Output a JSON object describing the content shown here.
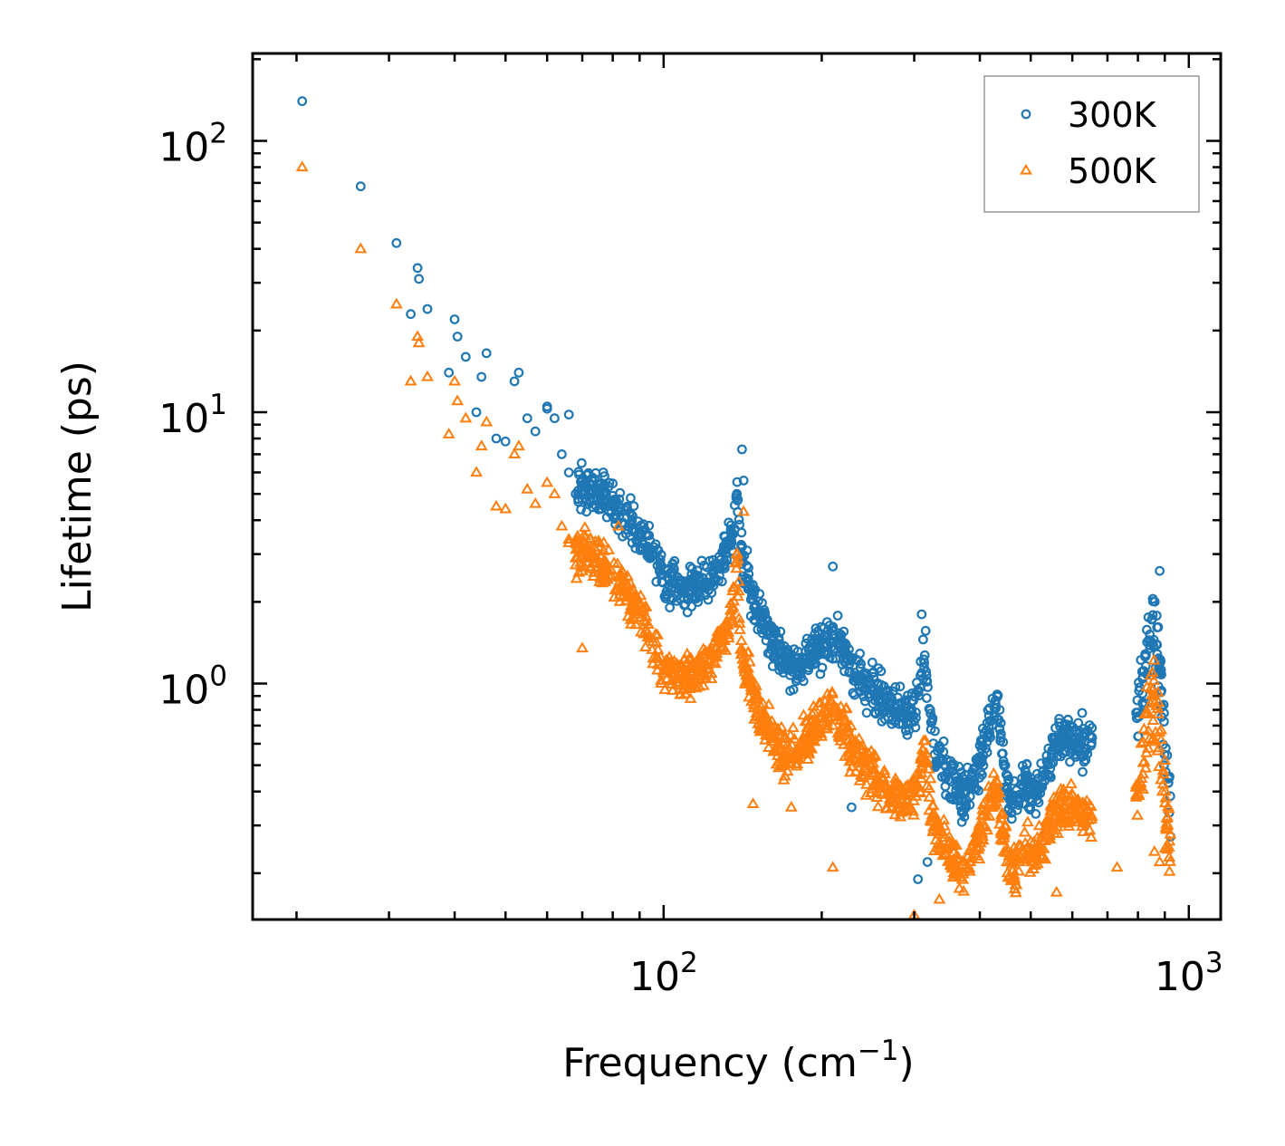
{
  "chart_data": {
    "type": "scatter",
    "title": "",
    "xlabel": "Frequency (cm",
    "xlabel_sup": "−1",
    "xlabel_close": ")",
    "ylabel": "Lifetime (ps)",
    "xscale": "log",
    "yscale": "log",
    "xlim": [
      16.5,
      1150
    ],
    "ylim": [
      0.135,
      210
    ],
    "x_ticks": [
      {
        "value": 100,
        "base": "10",
        "exp": "2"
      },
      {
        "value": 1000,
        "base": "10",
        "exp": "3"
      }
    ],
    "y_ticks": [
      {
        "value": 1,
        "base": "10",
        "exp": "0"
      },
      {
        "value": 10,
        "base": "10",
        "exp": "1"
      },
      {
        "value": 100,
        "base": "10",
        "exp": "2"
      }
    ],
    "legend_position": "top-right",
    "series": [
      {
        "name": "300K",
        "marker": "circle",
        "color": "#1f77b4",
        "anchors": [
          [
            20.5,
            140
          ],
          [
            26.5,
            68
          ],
          [
            31,
            42
          ],
          [
            33,
            23
          ],
          [
            34,
            34
          ],
          [
            34.2,
            31
          ],
          [
            35.5,
            24
          ],
          [
            39,
            14
          ],
          [
            40,
            22
          ],
          [
            40.5,
            19
          ],
          [
            42,
            16
          ],
          [
            44,
            10
          ],
          [
            45,
            13.5
          ],
          [
            46,
            16.5
          ],
          [
            48,
            8
          ],
          [
            50,
            7.8
          ],
          [
            52,
            13
          ],
          [
            53,
            14
          ],
          [
            55,
            9.5
          ],
          [
            57,
            8.5
          ],
          [
            60,
            10.5
          ],
          [
            62,
            9.5
          ],
          [
            64,
            7
          ],
          [
            66,
            6
          ],
          [
            68,
            5
          ],
          [
            70,
            5.6
          ],
          [
            72,
            5.2
          ],
          [
            75,
            5
          ],
          [
            78,
            4.8
          ],
          [
            82,
            4.4
          ],
          [
            85,
            4
          ],
          [
            88,
            3.9
          ],
          [
            92,
            3.4
          ],
          [
            95,
            3
          ],
          [
            98,
            2.7
          ],
          [
            100,
            2.4
          ],
          [
            105,
            2.3
          ],
          [
            110,
            2.2
          ],
          [
            115,
            2.3
          ],
          [
            120,
            2.3
          ],
          [
            125,
            2.6
          ],
          [
            130,
            3
          ],
          [
            135,
            3.4
          ],
          [
            138,
            5.5
          ],
          [
            140,
            3
          ],
          [
            145,
            2.3
          ],
          [
            150,
            1.9
          ],
          [
            155,
            1.7
          ],
          [
            160,
            1.5
          ],
          [
            165,
            1.3
          ],
          [
            170,
            1.2
          ],
          [
            180,
            1.15
          ],
          [
            190,
            1.3
          ],
          [
            200,
            1.4
          ],
          [
            210,
            1.5
          ],
          [
            220,
            1.4
          ],
          [
            230,
            1.1
          ],
          [
            240,
            1.0
          ],
          [
            250,
            0.95
          ],
          [
            260,
            0.9
          ],
          [
            270,
            0.85
          ],
          [
            280,
            0.8
          ],
          [
            290,
            0.75
          ],
          [
            300,
            0.8
          ],
          [
            310,
            1.1
          ],
          [
            315,
            1.3
          ],
          [
            320,
            0.8
          ],
          [
            330,
            0.55
          ],
          [
            340,
            0.5
          ],
          [
            350,
            0.45
          ],
          [
            360,
            0.42
          ],
          [
            370,
            0.38
          ],
          [
            380,
            0.4
          ],
          [
            390,
            0.45
          ],
          [
            400,
            0.5
          ],
          [
            410,
            0.6
          ],
          [
            420,
            0.75
          ],
          [
            430,
            0.9
          ],
          [
            440,
            0.6
          ],
          [
            450,
            0.4
          ],
          [
            460,
            0.38
          ],
          [
            470,
            0.35
          ],
          [
            480,
            0.42
          ],
          [
            490,
            0.45
          ],
          [
            500,
            0.4
          ],
          [
            520,
            0.42
          ],
          [
            540,
            0.5
          ],
          [
            560,
            0.6
          ],
          [
            580,
            0.65
          ],
          [
            600,
            0.62
          ],
          [
            620,
            0.6
          ],
          [
            640,
            0.6
          ],
          [
            800,
            0.8
          ],
          [
            820,
            1
          ],
          [
            840,
            1.4
          ],
          [
            860,
            1.7
          ],
          [
            880,
            1.2
          ],
          [
            900,
            0.6
          ],
          [
            920,
            0.4
          ]
        ],
        "outliers": [
          [
            141,
            7.3
          ],
          [
            142,
            5.6
          ],
          [
            210,
            2.7
          ],
          [
            310,
            1.8
          ],
          [
            60,
            10.3
          ],
          [
            66,
            9.8
          ],
          [
            228,
            0.35
          ],
          [
            305,
            0.19
          ],
          [
            318,
            0.22
          ],
          [
            880,
            2.6
          ]
        ]
      },
      {
        "name": "500K",
        "marker": "triangle",
        "color": "#ff7f0e",
        "anchors": [
          [
            20.5,
            80
          ],
          [
            26.5,
            40
          ],
          [
            31,
            25
          ],
          [
            33,
            13
          ],
          [
            34,
            19
          ],
          [
            34.2,
            18
          ],
          [
            35.5,
            13.5
          ],
          [
            39,
            8.3
          ],
          [
            40,
            13
          ],
          [
            40.5,
            11
          ],
          [
            42,
            9.5
          ],
          [
            44,
            6
          ],
          [
            45,
            7.5
          ],
          [
            46,
            9.2
          ],
          [
            48,
            4.5
          ],
          [
            50,
            4.4
          ],
          [
            52,
            7
          ],
          [
            53,
            7.5
          ],
          [
            55,
            5.2
          ],
          [
            57,
            4.6
          ],
          [
            60,
            5.5
          ],
          [
            62,
            5
          ],
          [
            64,
            3.8
          ],
          [
            66,
            3.3
          ],
          [
            68,
            2.9
          ],
          [
            70,
            3.2
          ],
          [
            72,
            3
          ],
          [
            75,
            2.8
          ],
          [
            78,
            2.6
          ],
          [
            82,
            2.4
          ],
          [
            85,
            2.1
          ],
          [
            88,
            2
          ],
          [
            92,
            1.7
          ],
          [
            95,
            1.4
          ],
          [
            98,
            1.25
          ],
          [
            100,
            1.15
          ],
          [
            105,
            1.1
          ],
          [
            110,
            1.05
          ],
          [
            115,
            1.1
          ],
          [
            120,
            1.15
          ],
          [
            125,
            1.3
          ],
          [
            130,
            1.5
          ],
          [
            135,
            1.7
          ],
          [
            138,
            3
          ],
          [
            140,
            1.4
          ],
          [
            145,
            1.05
          ],
          [
            150,
            0.85
          ],
          [
            155,
            0.75
          ],
          [
            160,
            0.65
          ],
          [
            165,
            0.58
          ],
          [
            170,
            0.55
          ],
          [
            180,
            0.55
          ],
          [
            190,
            0.65
          ],
          [
            200,
            0.75
          ],
          [
            210,
            0.8
          ],
          [
            220,
            0.7
          ],
          [
            230,
            0.55
          ],
          [
            240,
            0.5
          ],
          [
            250,
            0.45
          ],
          [
            260,
            0.42
          ],
          [
            270,
            0.4
          ],
          [
            280,
            0.38
          ],
          [
            290,
            0.36
          ],
          [
            300,
            0.38
          ],
          [
            310,
            0.5
          ],
          [
            315,
            0.6
          ],
          [
            320,
            0.38
          ],
          [
            330,
            0.28
          ],
          [
            340,
            0.26
          ],
          [
            350,
            0.24
          ],
          [
            360,
            0.22
          ],
          [
            370,
            0.21
          ],
          [
            380,
            0.22
          ],
          [
            390,
            0.25
          ],
          [
            400,
            0.28
          ],
          [
            410,
            0.32
          ],
          [
            420,
            0.38
          ],
          [
            430,
            0.42
          ],
          [
            440,
            0.3
          ],
          [
            450,
            0.22
          ],
          [
            460,
            0.21
          ],
          [
            470,
            0.2
          ],
          [
            480,
            0.24
          ],
          [
            490,
            0.26
          ],
          [
            500,
            0.23
          ],
          [
            520,
            0.25
          ],
          [
            540,
            0.3
          ],
          [
            560,
            0.33
          ],
          [
            580,
            0.35
          ],
          [
            600,
            0.34
          ],
          [
            620,
            0.33
          ],
          [
            640,
            0.33
          ],
          [
            800,
            0.45
          ],
          [
            820,
            0.55
          ],
          [
            840,
            0.75
          ],
          [
            860,
            0.9
          ],
          [
            880,
            0.65
          ],
          [
            900,
            0.35
          ],
          [
            920,
            0.25
          ]
        ],
        "outliers": [
          [
            142,
            4.3
          ],
          [
            70,
            1.35
          ],
          [
            148,
            0.36
          ],
          [
            175,
            0.35
          ],
          [
            210,
            0.21
          ],
          [
            300,
            0.14
          ],
          [
            335,
            0.16
          ],
          [
            560,
            0.17
          ],
          [
            730,
            0.21
          ],
          [
            860,
            0.24
          ],
          [
            880,
            0.22
          ],
          [
            82,
            3.8
          ],
          [
            66,
            3.4
          ]
        ]
      }
    ]
  }
}
